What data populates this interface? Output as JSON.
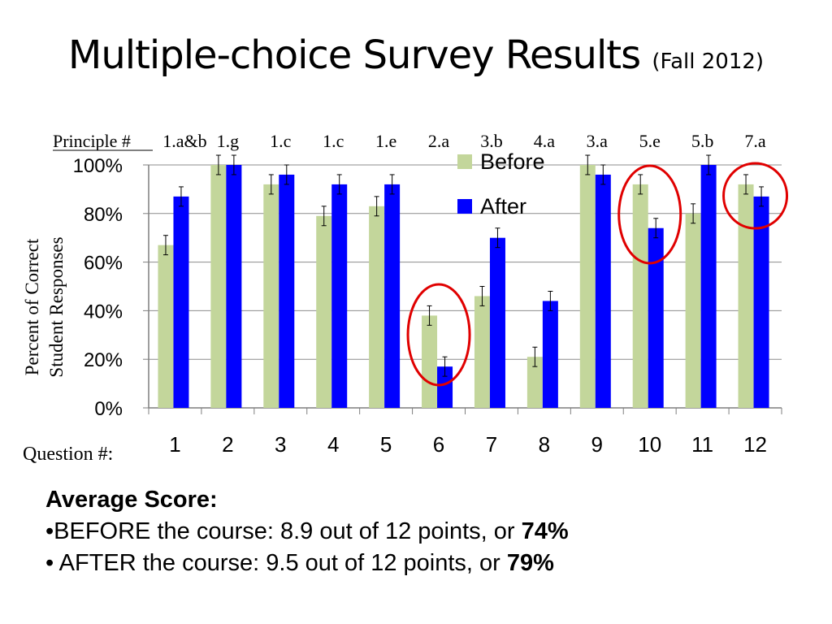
{
  "title": {
    "main": "Multiple-choice Survey Results",
    "sub": "(Fall 2012)"
  },
  "chart_data": {
    "type": "bar",
    "categories": [
      "1",
      "2",
      "3",
      "4",
      "5",
      "6",
      "7",
      "8",
      "9",
      "10",
      "11",
      "12"
    ],
    "principles": [
      "1.a&b",
      "1.g",
      "1.c",
      "1.c",
      "1.e",
      "2.a",
      "3.b",
      "4.a",
      "3.a",
      "5.e",
      "5.b",
      "7.a"
    ],
    "principle_label": "Principle #",
    "xlabel": "Question #:",
    "ylabel_lines": [
      "Percent of Correct",
      "Student Responses"
    ],
    "ylim": [
      0,
      100
    ],
    "yticks": [
      0,
      20,
      40,
      60,
      80,
      100
    ],
    "ytick_labels": [
      "0%",
      "20%",
      "40%",
      "60%",
      "80%",
      "100%"
    ],
    "grid": true,
    "legend_position": "top-center",
    "series": [
      {
        "name": "Before",
        "color": "#c3d69b",
        "values": [
          67,
          100,
          92,
          79,
          83,
          38,
          46,
          21,
          100,
          92,
          80,
          92
        ],
        "errors": [
          4,
          4,
          4,
          4,
          4,
          4,
          4,
          4,
          4,
          4,
          4,
          4
        ]
      },
      {
        "name": "After",
        "color": "#0000ff",
        "values": [
          87,
          100,
          96,
          92,
          92,
          17,
          70,
          44,
          96,
          74,
          100,
          87
        ],
        "errors": [
          4,
          4,
          4,
          4,
          4,
          4,
          4,
          4,
          4,
          4,
          4,
          4
        ]
      }
    ],
    "highlighted_categories": [
      "6",
      "10",
      "12"
    ],
    "highlight_color": "#e00000"
  },
  "summary": {
    "heading": "Average Score:",
    "before_text": "•BEFORE the course: 8.9 out of 12 points, or ",
    "before_pct": "74%",
    "after_text": "• AFTER the course: 9.5 out of 12 points, or ",
    "after_pct": "79%"
  }
}
